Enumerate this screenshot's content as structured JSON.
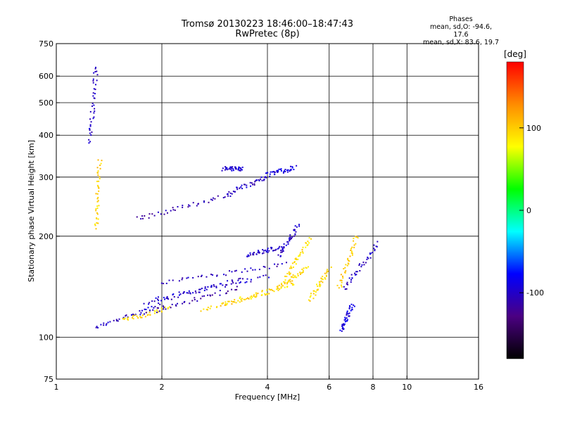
{
  "header": {
    "title_line1": "Tromsø 20130223 18:46:00–18:47:43",
    "title_line2": "RwPretec (8p)"
  },
  "stats": {
    "heading": "Phases",
    "line_o": "mean, sd,O: -94.6, 17.6",
    "line_x": "mean, sd,X:  83.6, 19.7"
  },
  "colorbar": {
    "unit_label": "[deg]",
    "ticks": [
      {
        "value": 100,
        "label": "100"
      },
      {
        "value": 0,
        "label": "0"
      },
      {
        "value": -100,
        "label": "-100"
      }
    ],
    "range": [
      -180,
      180
    ],
    "colors": [
      "#000000",
      "#4b0082",
      "#0000ff",
      "#00ffff",
      "#00ff00",
      "#ffff00",
      "#ff8c00",
      "#ff0000"
    ]
  },
  "chart_data": {
    "type": "scatter",
    "xlabel": "Frequency [MHz]",
    "ylabel": "Stationary phase Virtual Height [km]",
    "xscale": "log",
    "yscale": "log",
    "xlim": [
      1,
      16
    ],
    "ylim": [
      75,
      750
    ],
    "x_ticks": [
      1,
      2,
      4,
      6,
      8,
      10,
      16
    ],
    "y_ticks": [
      75,
      100,
      200,
      300,
      400,
      500,
      600,
      750
    ],
    "x_grid": [
      2,
      4,
      6,
      8,
      10
    ],
    "y_grid": [
      100,
      200,
      300,
      400,
      500,
      600
    ],
    "traces": [
      {
        "x0": 1.3,
        "x1": 2.0,
        "y0": 107,
        "y1": 125,
        "phase": -100
      },
      {
        "x0": 1.55,
        "x1": 2.1,
        "y0": 112,
        "y1": 122,
        "phase": 95
      },
      {
        "x0": 1.8,
        "x1": 3.3,
        "y0": 118,
        "y1": 140,
        "phase": -110
      },
      {
        "x0": 1.8,
        "x1": 3.5,
        "y0": 125,
        "y1": 150,
        "phase": -100
      },
      {
        "x0": 1.9,
        "x1": 4.0,
        "y0": 130,
        "y1": 152,
        "phase": -95
      },
      {
        "x0": 2.0,
        "x1": 4.5,
        "y0": 145,
        "y1": 165,
        "phase": -105
      },
      {
        "x0": 2.6,
        "x1": 4.2,
        "y0": 120,
        "y1": 138,
        "phase": 100
      },
      {
        "x0": 3.0,
        "x1": 4.8,
        "y0": 125,
        "y1": 145,
        "phase": 90
      },
      {
        "x0": 1.7,
        "x1": 3.1,
        "y0": 225,
        "y1": 265,
        "phase": -110
      },
      {
        "x0": 3.1,
        "x1": 4.0,
        "y0": 268,
        "y1": 300,
        "phase": -100
      },
      {
        "x0": 3.0,
        "x1": 3.4,
        "y0": 318,
        "y1": 318,
        "phase": -95
      },
      {
        "x0": 4.0,
        "x1": 4.8,
        "y0": 305,
        "y1": 320,
        "phase": -90
      },
      {
        "x0": 3.5,
        "x1": 4.3,
        "y0": 175,
        "y1": 185,
        "phase": -100
      },
      {
        "x0": 4.3,
        "x1": 5.2,
        "y0": 140,
        "y1": 160,
        "phase": 95
      },
      {
        "x0": 4.5,
        "x1": 5.3,
        "y0": 150,
        "y1": 195,
        "phase": 90
      },
      {
        "x0": 4.3,
        "x1": 4.9,
        "y0": 175,
        "y1": 215,
        "phase": -100
      },
      {
        "x0": 5.3,
        "x1": 6.0,
        "y0": 130,
        "y1": 160,
        "phase": 95
      },
      {
        "x0": 6.4,
        "x1": 7.2,
        "y0": 140,
        "y1": 200,
        "phase": 100
      },
      {
        "x0": 6.6,
        "x1": 8.3,
        "y0": 140,
        "y1": 190,
        "phase": -100
      },
      {
        "x0": 6.5,
        "x1": 7.0,
        "y0": 105,
        "y1": 125,
        "phase": -90
      },
      {
        "x0": 1.25,
        "x1": 1.3,
        "y0": 380,
        "y1": 640,
        "phase": -100
      },
      {
        "x0": 1.3,
        "x1": 1.33,
        "y0": 210,
        "y1": 340,
        "phase": 95
      }
    ]
  }
}
